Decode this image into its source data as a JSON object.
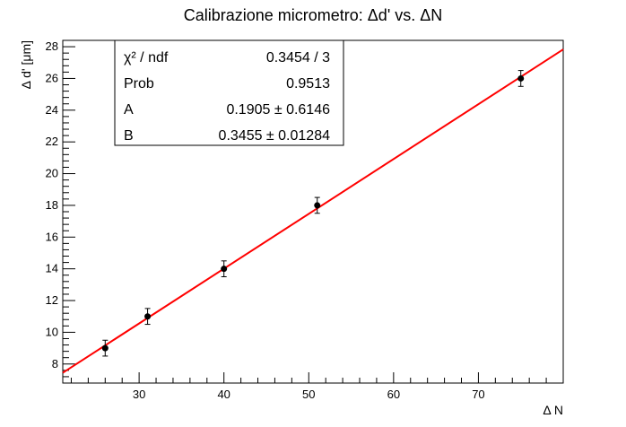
{
  "chart_data": {
    "type": "scatter",
    "title": "Calibrazione micrometro: Δd' vs. ΔN",
    "xlabel": "Δ N",
    "ylabel": "Δ d' [μm]",
    "xlim": [
      21,
      80
    ],
    "ylim": [
      6.8,
      28.4
    ],
    "x_ticks": [
      30,
      40,
      50,
      60,
      70
    ],
    "y_ticks": [
      8,
      10,
      12,
      14,
      16,
      18,
      20,
      22,
      24,
      26,
      28
    ],
    "points": [
      {
        "x": 26,
        "y": 9,
        "err": 0.5
      },
      {
        "x": 31,
        "y": 11,
        "err": 0.5
      },
      {
        "x": 40,
        "y": 14,
        "err": 0.5
      },
      {
        "x": 51,
        "y": 18,
        "err": 0.5
      },
      {
        "x": 75,
        "y": 26,
        "err": 0.5
      }
    ],
    "fit": {
      "type": "linear",
      "color": "#ff0000"
    },
    "marker_color": "#000000",
    "grid": false,
    "stats_box": {
      "placement": "top-left",
      "rows": [
        {
          "label": "χ² / ndf",
          "value": "0.3454 / 3"
        },
        {
          "label": "Prob",
          "value": "0.9513"
        },
        {
          "label": "A",
          "value": "0.1905 ± 0.6146"
        },
        {
          "label": "B",
          "value": "0.3455 ± 0.01284"
        }
      ]
    }
  }
}
